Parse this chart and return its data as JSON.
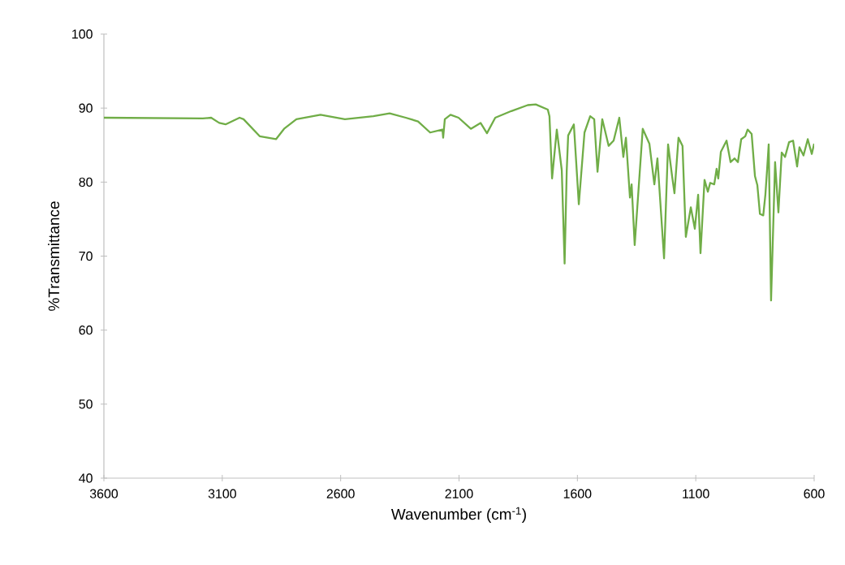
{
  "chart_data": {
    "type": "line",
    "xlabel": "Wavenumber (cm$^{-1}$)",
    "ylabel": "%Transmittance",
    "xlim": [
      3600,
      600
    ],
    "ylim": [
      40,
      100
    ],
    "xticks": [
      3600,
      3100,
      2600,
      2100,
      1600,
      1100,
      600
    ],
    "yticks": [
      40,
      50,
      60,
      70,
      80,
      90,
      100
    ],
    "x": [
      3600,
      3182,
      3147,
      3113,
      3086,
      3027,
      3010,
      2942,
      2873,
      2839,
      2787,
      2685,
      2582,
      2462,
      2393,
      2325,
      2273,
      2222,
      2170,
      2167,
      2160,
      2136,
      2102,
      2050,
      2009,
      1982,
      1947,
      1879,
      1810,
      1776,
      1725,
      1718,
      1707,
      1687,
      1666,
      1654,
      1645,
      1639,
      1615,
      1594,
      1570,
      1546,
      1529,
      1515,
      1495,
      1468,
      1447,
      1423,
      1406,
      1395,
      1378,
      1371,
      1358,
      1324,
      1296,
      1275,
      1262,
      1234,
      1217,
      1200,
      1190,
      1173,
      1156,
      1142,
      1121,
      1104,
      1090,
      1080,
      1063,
      1049,
      1039,
      1022,
      1012,
      1005,
      994,
      970,
      953,
      936,
      922,
      908,
      891,
      881,
      864,
      850,
      840,
      829,
      815,
      806,
      799,
      792,
      782,
      765,
      751,
      737,
      723,
      706,
      689,
      672,
      662,
      645,
      627,
      610,
      600
    ],
    "series": [
      {
        "color": "#70ad47",
        "values": [
          88.7,
          88.6,
          88.7,
          88.0,
          87.8,
          88.7,
          88.5,
          86.2,
          85.8,
          87.2,
          88.5,
          89.1,
          88.5,
          88.9,
          89.3,
          88.7,
          88.2,
          86.7,
          87.1,
          86.0,
          88.5,
          89.1,
          88.7,
          87.2,
          88.0,
          86.6,
          88.7,
          89.6,
          90.4,
          90.5,
          89.8,
          88.9,
          80.5,
          87.1,
          81.6,
          69.0,
          81.6,
          86.3,
          87.8,
          77.0,
          86.7,
          88.9,
          88.5,
          81.4,
          88.5,
          84.9,
          85.6,
          88.7,
          83.4,
          86.0,
          77.9,
          79.7,
          71.5,
          87.2,
          85.2,
          79.7,
          83.2,
          69.7,
          85.1,
          80.8,
          78.5,
          86.0,
          84.9,
          72.6,
          76.6,
          73.7,
          78.3,
          70.4,
          80.3,
          78.7,
          79.9,
          79.7,
          81.8,
          80.5,
          84.1,
          85.6,
          82.7,
          83.2,
          82.7,
          85.8,
          86.2,
          87.1,
          86.5,
          80.8,
          79.6,
          75.7,
          75.5,
          78.3,
          81.6,
          85.1,
          64.0,
          82.7,
          75.9,
          84.0,
          83.4,
          85.4,
          85.6,
          82.1,
          84.7,
          83.6,
          85.8,
          83.8,
          85.2
        ]
      }
    ]
  }
}
